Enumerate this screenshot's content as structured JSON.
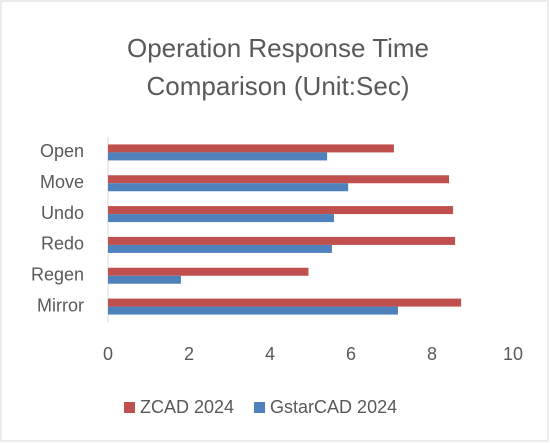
{
  "chart_data": {
    "type": "barh",
    "title": [
      "Operation Response Time",
      "Comparison (Unit:Sec)"
    ],
    "categories": [
      "Open",
      "Move",
      "Undo",
      "Redo",
      "Regen",
      "Mirror"
    ],
    "series": [
      {
        "name": "ZCAD 2024",
        "color": "#c0504d",
        "values": [
          7.06,
          8.42,
          8.52,
          8.57,
          4.95,
          8.72
        ]
      },
      {
        "name": "GstarCAD 2024",
        "color": "#4f81bd",
        "values": [
          5.41,
          5.93,
          5.58,
          5.53,
          1.8,
          7.16
        ]
      }
    ],
    "xlim": [
      0,
      10
    ],
    "xticks": [
      0,
      2,
      4,
      6,
      8,
      10
    ],
    "grid": false,
    "legend": "bottom"
  }
}
